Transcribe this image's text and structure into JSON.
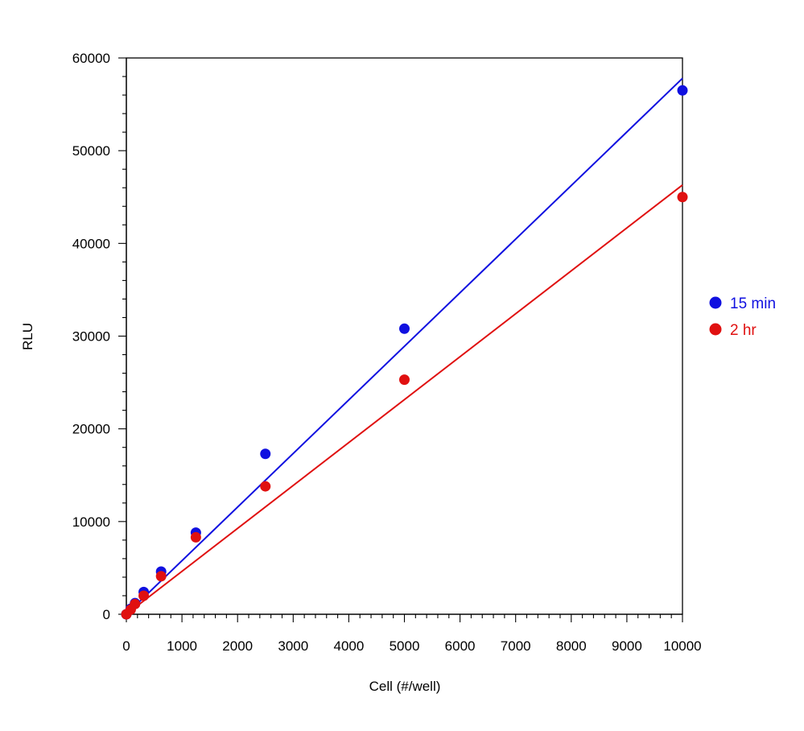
{
  "chart_data": {
    "type": "scatter",
    "title": "",
    "xlabel": "Cell (#/well)",
    "ylabel": "RLU",
    "xlim": [
      0,
      10000
    ],
    "ylim": [
      0,
      60000
    ],
    "x_major_ticks": [
      0,
      1000,
      2000,
      3000,
      4000,
      5000,
      6000,
      7000,
      8000,
      9000,
      10000
    ],
    "x_minor_step": 200,
    "y_major_ticks": [
      0,
      10000,
      20000,
      30000,
      40000,
      50000,
      60000
    ],
    "y_minor_step": 2000,
    "x_tick_labels": [
      "0",
      "1000",
      "2000",
      "3000",
      "4000",
      "5000",
      "6000",
      "7000",
      "8000",
      "9000",
      "10000"
    ],
    "y_tick_labels": [
      "0",
      "10000",
      "20000",
      "30000",
      "40000",
      "50000",
      "60000"
    ],
    "grid": false,
    "legend_position": "right",
    "series": [
      {
        "name": "15 min",
        "color": "#1010e0",
        "x": [
          0,
          78,
          156,
          312,
          625,
          1250,
          2500,
          5000,
          10000
        ],
        "y": [
          0,
          600,
          1200,
          2400,
          4600,
          8800,
          17300,
          30800,
          56500
        ],
        "fit": {
          "x": [
            0,
            10000
          ],
          "y": [
            0,
            57800
          ]
        }
      },
      {
        "name": "2 hr",
        "color": "#e01010",
        "x": [
          0,
          78,
          156,
          312,
          625,
          1250,
          2500,
          5000,
          10000
        ],
        "y": [
          0,
          500,
          1100,
          2000,
          4100,
          8300,
          13800,
          25300,
          45000
        ],
        "fit": {
          "x": [
            0,
            10000
          ],
          "y": [
            0,
            46300
          ]
        }
      }
    ]
  }
}
